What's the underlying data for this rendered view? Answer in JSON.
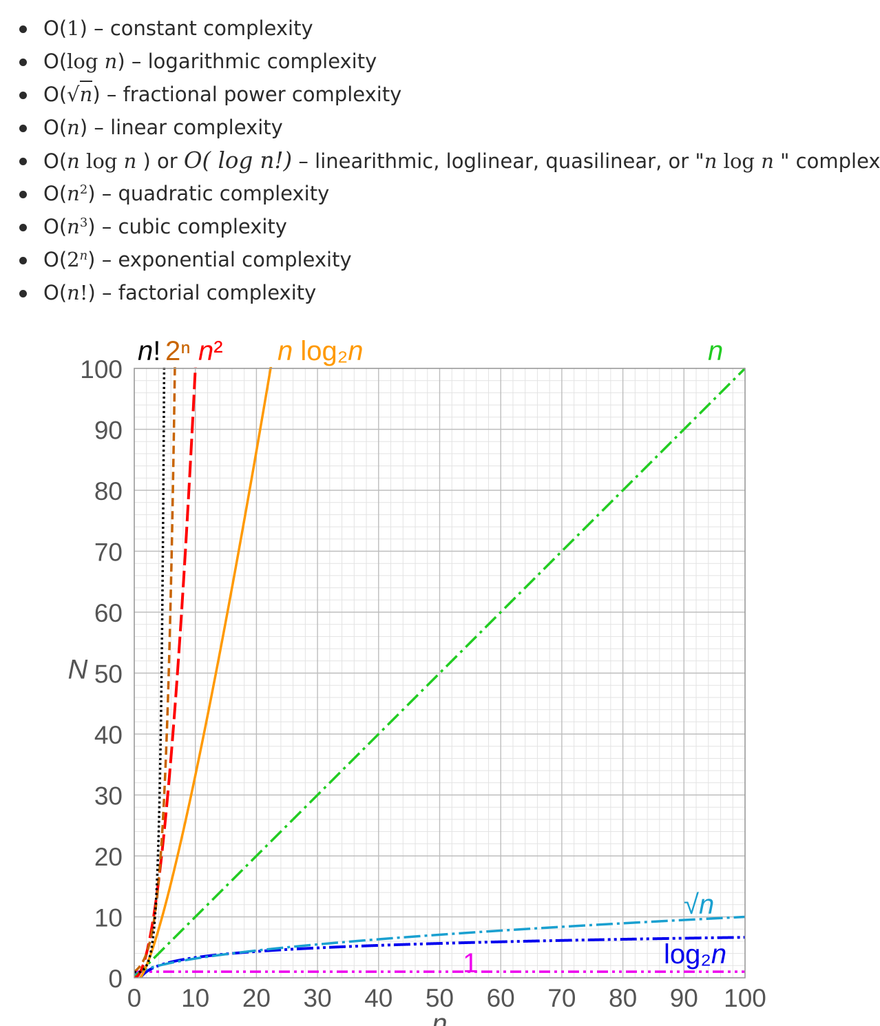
{
  "list": [
    {
      "prefix": "O(",
      "math": "1",
      "suffix": ") – constant complexity"
    },
    {
      "prefix": "O(",
      "math_a": "log ",
      "math_b": "n",
      "suffix": ") – logarithmic complexity"
    },
    {
      "prefix": "O(",
      "radical": "√",
      "math": "n",
      "suffix": ") – fractional power complexity"
    },
    {
      "prefix": "O(",
      "math": "n",
      "suffix": ") – linear complexity"
    },
    {
      "prefix": "O(",
      "m1": "n",
      "m2": " log ",
      "m3": "n",
      "mid": " ) or ",
      "m4": "O(",
      "m5": " log n!)",
      "mid2": " – linearithmic, loglinear, quasilinear, or \"",
      "m6": "n",
      "m7": " log ",
      "m8": "n",
      "suffix": "  \" complexity"
    },
    {
      "prefix": "O(",
      "math": "n",
      "sup": "2",
      "suffix": ") – quadratic complexity"
    },
    {
      "prefix": "O(",
      "math": "n",
      "sup": "3",
      "suffix": ") – cubic complexity"
    },
    {
      "prefix": "O(",
      "math": "2",
      "sup": "n",
      "suffix": ") – exponential complexity"
    },
    {
      "prefix": "O(",
      "math": "n",
      "math2": "!",
      "suffix": ") – factorial complexity"
    }
  ],
  "chart_data": {
    "type": "line",
    "xlabel": "n",
    "ylabel": "N",
    "xlim": [
      0,
      100
    ],
    "ylim": [
      0,
      100
    ],
    "grid": true,
    "xticks": [
      "0",
      "10",
      "20",
      "30",
      "40",
      "50",
      "60",
      "70",
      "80",
      "90",
      "100"
    ],
    "yticks": [
      "0",
      "10",
      "20",
      "30",
      "40",
      "50",
      "60",
      "70",
      "80",
      "90",
      "100"
    ],
    "series": [
      {
        "name": "n!",
        "color": "#000000",
        "function": "factorial",
        "label_parts": [
          "n",
          "!"
        ]
      },
      {
        "name": "2ⁿ",
        "color": "#c86400",
        "function": "pow2",
        "label_parts": [
          "2",
          "ⁿ"
        ]
      },
      {
        "name": "n²",
        "color": "#ff0000",
        "function": "square",
        "label_parts": [
          "n",
          "²"
        ]
      },
      {
        "name": "n log₂n",
        "color": "#ff9900",
        "function": "nlogn",
        "label_parts": [
          "n",
          " log₂",
          "n"
        ]
      },
      {
        "name": "n",
        "color": "#22cc22",
        "function": "linear",
        "label_parts": [
          "n"
        ]
      },
      {
        "name": "√n",
        "color": "#1aa0d0",
        "function": "sqrt",
        "label_parts": [
          "√",
          "n"
        ]
      },
      {
        "name": "log₂n",
        "color": "#0000ee",
        "function": "log2",
        "label_parts": [
          "log₂",
          "n"
        ]
      },
      {
        "name": "1",
        "color": "#ee00ee",
        "function": "constant",
        "label_parts": [
          "1"
        ]
      }
    ]
  }
}
